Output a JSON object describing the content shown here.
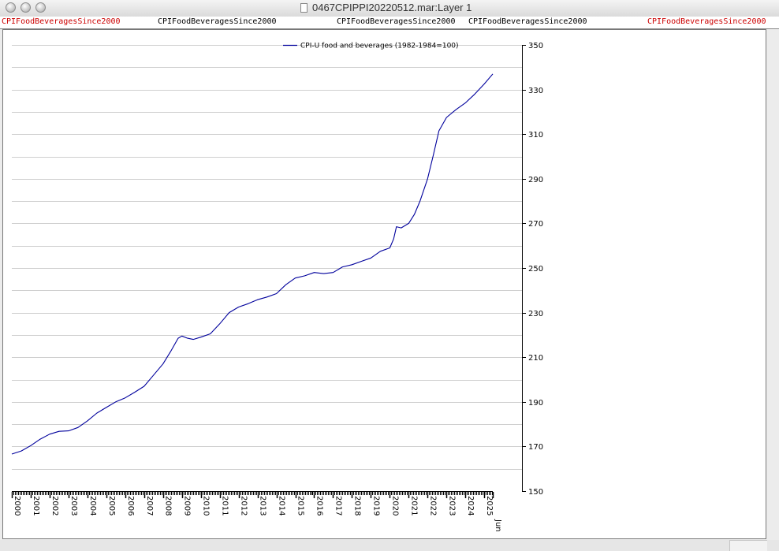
{
  "window": {
    "title": "0467CPIPPI20220512.mar:Layer 1"
  },
  "tags": [
    {
      "label": "CPIFoodBeveragesSince2000",
      "color": "#cc0000"
    },
    {
      "label": "CPIFoodBeveragesSince2000",
      "color": "#000000"
    },
    {
      "label": "CPIFoodBeveragesSince2000",
      "color": "#000000"
    },
    {
      "label": "CPIFoodBeveragesSince2000",
      "color": "#000000"
    },
    {
      "label": "CPIFoodBeveragesSince2000",
      "color": "#cc0000"
    }
  ],
  "chart_data": {
    "type": "line",
    "title": "",
    "xlabel": "",
    "ylabel": "",
    "x_tick_labels": [
      "2000",
      "2001",
      "2002",
      "2003",
      "2004",
      "2005",
      "2006",
      "2007",
      "2008",
      "2009",
      "2010",
      "2011",
      "2012",
      "2013",
      "2014",
      "2015",
      "2016",
      "2017",
      "2018",
      "2019",
      "2020",
      "2021",
      "2022",
      "2023",
      "2024",
      "2025",
      "Jun"
    ],
    "y_ticks": [
      150,
      170,
      190,
      210,
      230,
      250,
      270,
      290,
      310,
      330,
      350
    ],
    "ylim": [
      150,
      350
    ],
    "xlim": [
      2000,
      2025.45
    ],
    "y_axis_side": "right",
    "grid": true,
    "legend_position": "top-center",
    "series": [
      {
        "name": "CPI-U food and beverages (1982-1984=100)",
        "color": "#00009c",
        "points": [
          [
            2000.0,
            166.6
          ],
          [
            2000.5,
            168.0
          ],
          [
            2001.0,
            170.4
          ],
          [
            2001.5,
            173.3
          ],
          [
            2002.0,
            175.5
          ],
          [
            2002.5,
            176.8
          ],
          [
            2003.0,
            177.0
          ],
          [
            2003.5,
            178.5
          ],
          [
            2004.0,
            181.5
          ],
          [
            2004.5,
            185.0
          ],
          [
            2005.0,
            187.5
          ],
          [
            2005.5,
            190.0
          ],
          [
            2006.0,
            191.8
          ],
          [
            2006.5,
            194.3
          ],
          [
            2007.0,
            197.0
          ],
          [
            2007.5,
            202.0
          ],
          [
            2008.0,
            207.0
          ],
          [
            2008.4,
            212.5
          ],
          [
            2008.8,
            218.5
          ],
          [
            2009.0,
            219.5
          ],
          [
            2009.3,
            218.5
          ],
          [
            2009.6,
            218.0
          ],
          [
            2010.0,
            219.0
          ],
          [
            2010.5,
            220.5
          ],
          [
            2011.0,
            225.0
          ],
          [
            2011.5,
            230.0
          ],
          [
            2012.0,
            232.5
          ],
          [
            2012.5,
            234.0
          ],
          [
            2013.0,
            235.8
          ],
          [
            2013.5,
            237.0
          ],
          [
            2014.0,
            238.5
          ],
          [
            2014.5,
            242.5
          ],
          [
            2015.0,
            245.5
          ],
          [
            2015.5,
            246.5
          ],
          [
            2016.0,
            248.0
          ],
          [
            2016.5,
            247.5
          ],
          [
            2017.0,
            248.0
          ],
          [
            2017.5,
            250.5
          ],
          [
            2018.0,
            251.5
          ],
          [
            2018.5,
            253.0
          ],
          [
            2019.0,
            254.5
          ],
          [
            2019.5,
            257.5
          ],
          [
            2020.0,
            259.0
          ],
          [
            2020.2,
            263.0
          ],
          [
            2020.35,
            268.5
          ],
          [
            2020.6,
            268.0
          ],
          [
            2021.0,
            270.0
          ],
          [
            2021.3,
            274.0
          ],
          [
            2021.6,
            280.0
          ],
          [
            2022.0,
            290.0
          ],
          [
            2022.3,
            300.5
          ],
          [
            2022.6,
            311.5
          ],
          [
            2023.0,
            317.5
          ],
          [
            2023.5,
            321.0
          ],
          [
            2024.0,
            324.0
          ],
          [
            2024.5,
            328.0
          ],
          [
            2025.0,
            332.5
          ],
          [
            2025.45,
            337.0
          ]
        ]
      }
    ]
  }
}
